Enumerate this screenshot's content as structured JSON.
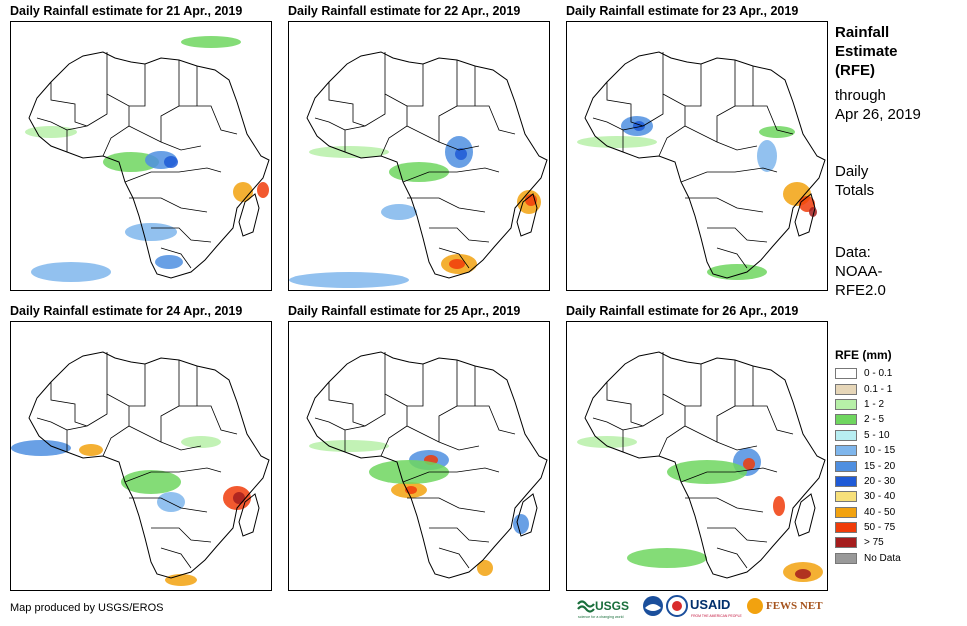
{
  "panels": [
    {
      "title": "Daily Rainfall estimate for 21 Apr., 2019"
    },
    {
      "title": "Daily Rainfall estimate for 22 Apr., 2019"
    },
    {
      "title": "Daily Rainfall estimate for 23 Apr., 2019"
    },
    {
      "title": "Daily Rainfall estimate for 24 Apr., 2019"
    },
    {
      "title": "Daily Rainfall estimate for 25 Apr., 2019"
    },
    {
      "title": "Daily Rainfall estimate for 26 Apr., 2019"
    }
  ],
  "side": {
    "title_line1": "Rainfall",
    "title_line2": "Estimate",
    "title_line3": "(RFE)",
    "through": "through",
    "date": "Apr 26, 2019",
    "daily": "Daily",
    "totals": "Totals",
    "data_label": "Data:",
    "source1": "NOAA-",
    "source2": "RFE2.0"
  },
  "legend": {
    "title": "RFE (mm)",
    "items": [
      {
        "label": "0 - 0.1",
        "color": "#ffffff"
      },
      {
        "label": "0.1 - 1",
        "color": "#e6d6b8"
      },
      {
        "label": "1 - 2",
        "color": "#b7f0a8"
      },
      {
        "label": "2 - 5",
        "color": "#6fd65f"
      },
      {
        "label": "5 - 10",
        "color": "#b8eef2"
      },
      {
        "label": "10 - 15",
        "color": "#7fb6ec"
      },
      {
        "label": "15 - 20",
        "color": "#4f8fe0"
      },
      {
        "label": "20 - 30",
        "color": "#1f5ad6"
      },
      {
        "label": "30 - 40",
        "color": "#f7e07a"
      },
      {
        "label": "40 - 50",
        "color": "#f2a20f"
      },
      {
        "label": "50 - 75",
        "color": "#f03c0a"
      },
      {
        "label": "> 75",
        "color": "#a51d1d"
      },
      {
        "label": "No Data",
        "color": "#999999"
      }
    ]
  },
  "credit": "Map produced by USGS/EROS",
  "logos": {
    "usgs": "USGS",
    "usgs_tag": "science for a changing world",
    "usaid": "USAID",
    "usaid_tag": "FROM THE AMERICAN PEOPLE",
    "fews": "FEWS NET"
  }
}
